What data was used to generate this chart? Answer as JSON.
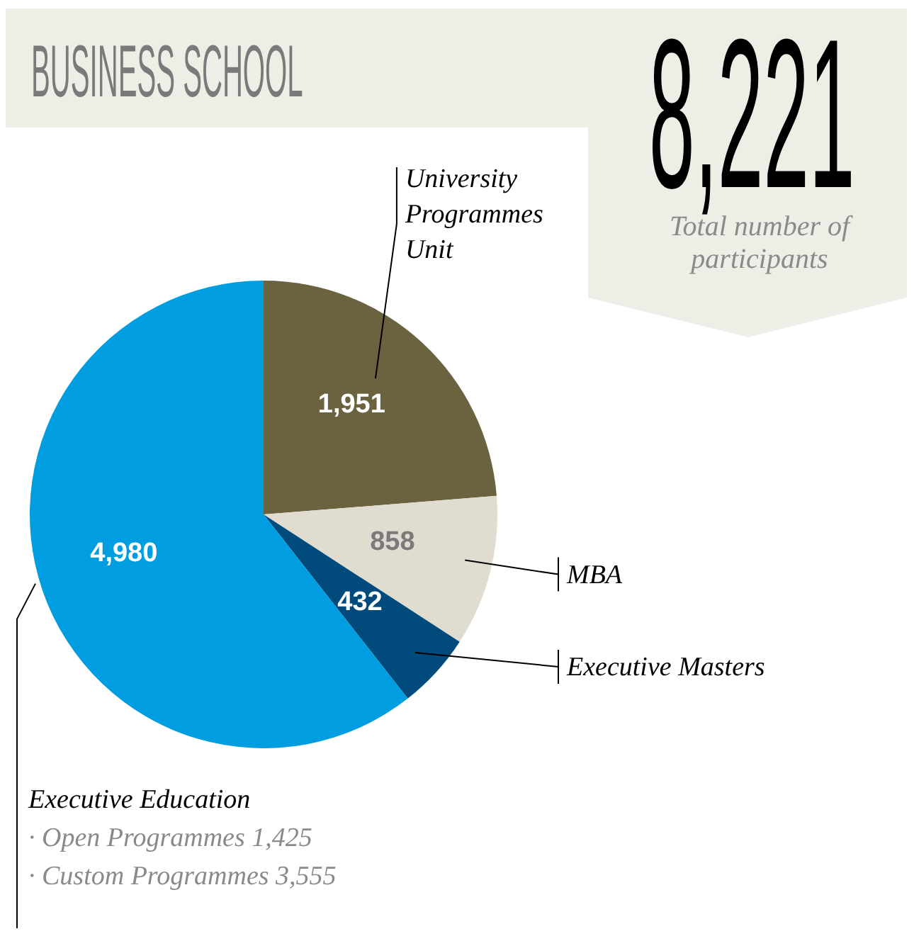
{
  "chart_data": {
    "type": "pie",
    "title": "BUSINESS SCHOOL",
    "categories": [
      "University Programmes Unit",
      "MBA",
      "Executive Masters",
      "Executive Education"
    ],
    "values": [
      1951,
      858,
      432,
      4980
    ],
    "colors": [
      "#6b6240",
      "#e0ddd0",
      "#004a7c",
      "#009ee0"
    ],
    "value_labels": [
      "1,951",
      "858",
      "432",
      "4,980"
    ],
    "annotations": [
      "8,221",
      "Total number of participants",
      "· Open Programmes 1,425",
      "· Custom Programmes 3,555"
    ]
  }
}
